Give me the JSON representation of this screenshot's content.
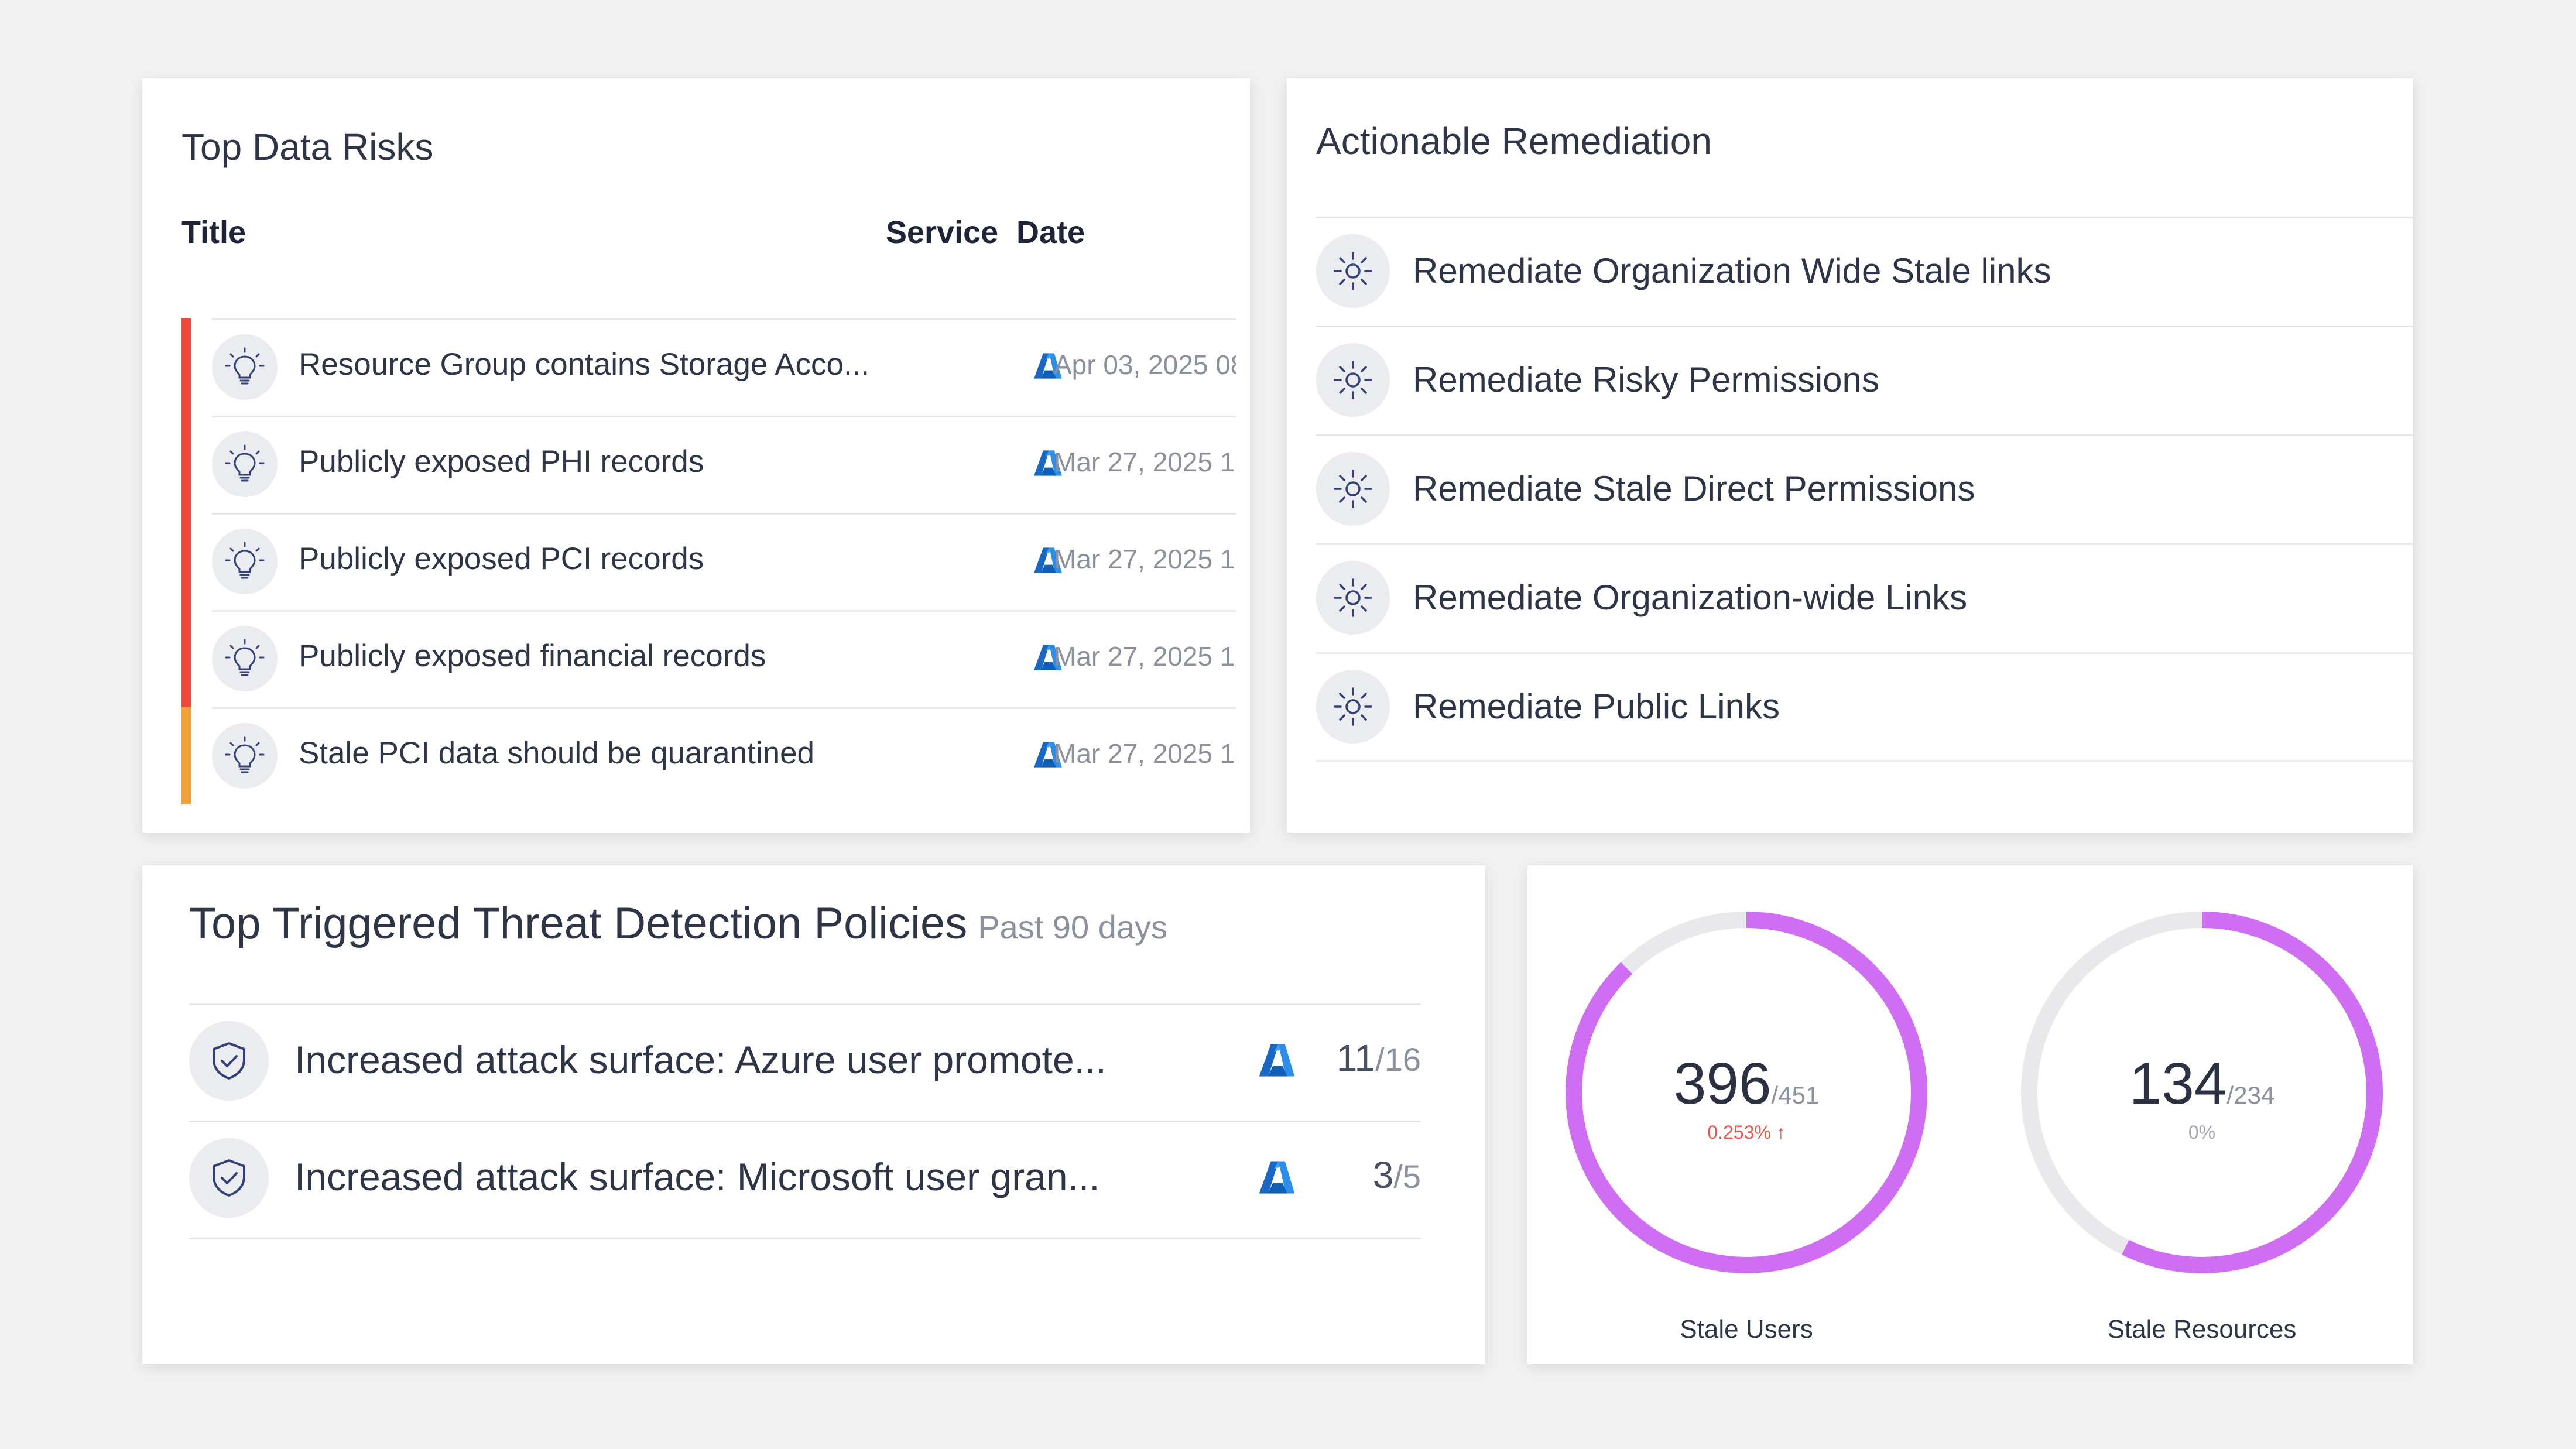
{
  "colors": {
    "critical": "#ef4a39",
    "warning": "#f4a13a",
    "azure_blue": "#1e78d6",
    "donut_fill": "#cf6ef2",
    "donut_track": "#e9e9eb",
    "trend_up": "#e8584a",
    "icon_stroke": "#33407a"
  },
  "data_risks": {
    "title": "Top Data Risks",
    "headers": {
      "title": "Title",
      "service": "Service",
      "date": "Date"
    },
    "rows": [
      {
        "icon": "lightbulb-icon",
        "title": "Resource Group contains Storage Acco...",
        "service_icon": "azure-icon",
        "date": "Apr 03, 2025 08",
        "severity": "critical"
      },
      {
        "icon": "lightbulb-icon",
        "title": "Publicly exposed PHI records",
        "service_icon": "azure-icon",
        "date": "Mar 27, 2025 1",
        "severity": "critical"
      },
      {
        "icon": "lightbulb-icon",
        "title": "Publicly exposed PCI records",
        "service_icon": "azure-icon",
        "date": "Mar 27, 2025 1",
        "severity": "critical"
      },
      {
        "icon": "lightbulb-icon",
        "title": "Publicly exposed financial records",
        "service_icon": "azure-icon",
        "date": "Mar 27, 2025 1",
        "severity": "critical"
      },
      {
        "icon": "lightbulb-icon",
        "title": "Stale PCI data should be quarantined",
        "service_icon": "azure-icon",
        "date": "Mar 27, 2025 1",
        "severity": "warning"
      }
    ]
  },
  "remediation": {
    "title": "Actionable Remediation",
    "items": [
      {
        "icon": "sun-icon",
        "label": "Remediate Organization Wide Stale links"
      },
      {
        "icon": "sun-icon",
        "label": "Remediate Risky Permissions"
      },
      {
        "icon": "sun-icon",
        "label": "Remediate Stale Direct Permissions"
      },
      {
        "icon": "sun-icon",
        "label": "Remediate Organization-wide Links"
      },
      {
        "icon": "sun-icon",
        "label": "Remediate Public Links"
      }
    ]
  },
  "threat": {
    "title": "Top Triggered Threat Detection Policies",
    "subtitle": "Past 90 days",
    "rows": [
      {
        "icon": "shield-check-icon",
        "label": "Increased attack surface: Azure user promote...",
        "service_icon": "azure-icon",
        "count": "11",
        "total": "/16"
      },
      {
        "icon": "shield-check-icon",
        "label": "Increased attack surface: Microsoft user gran...",
        "service_icon": "azure-icon",
        "count": "3",
        "total": "/5"
      }
    ]
  },
  "stale": [
    {
      "value": "396",
      "total": "/451",
      "change": "0.253%",
      "trend": "up",
      "caption": "Stale Users",
      "fraction": 0.878
    },
    {
      "value": "134",
      "total": "/234",
      "change": "0%",
      "trend": "none",
      "caption": "Stale Resources",
      "fraction": 0.573
    }
  ]
}
